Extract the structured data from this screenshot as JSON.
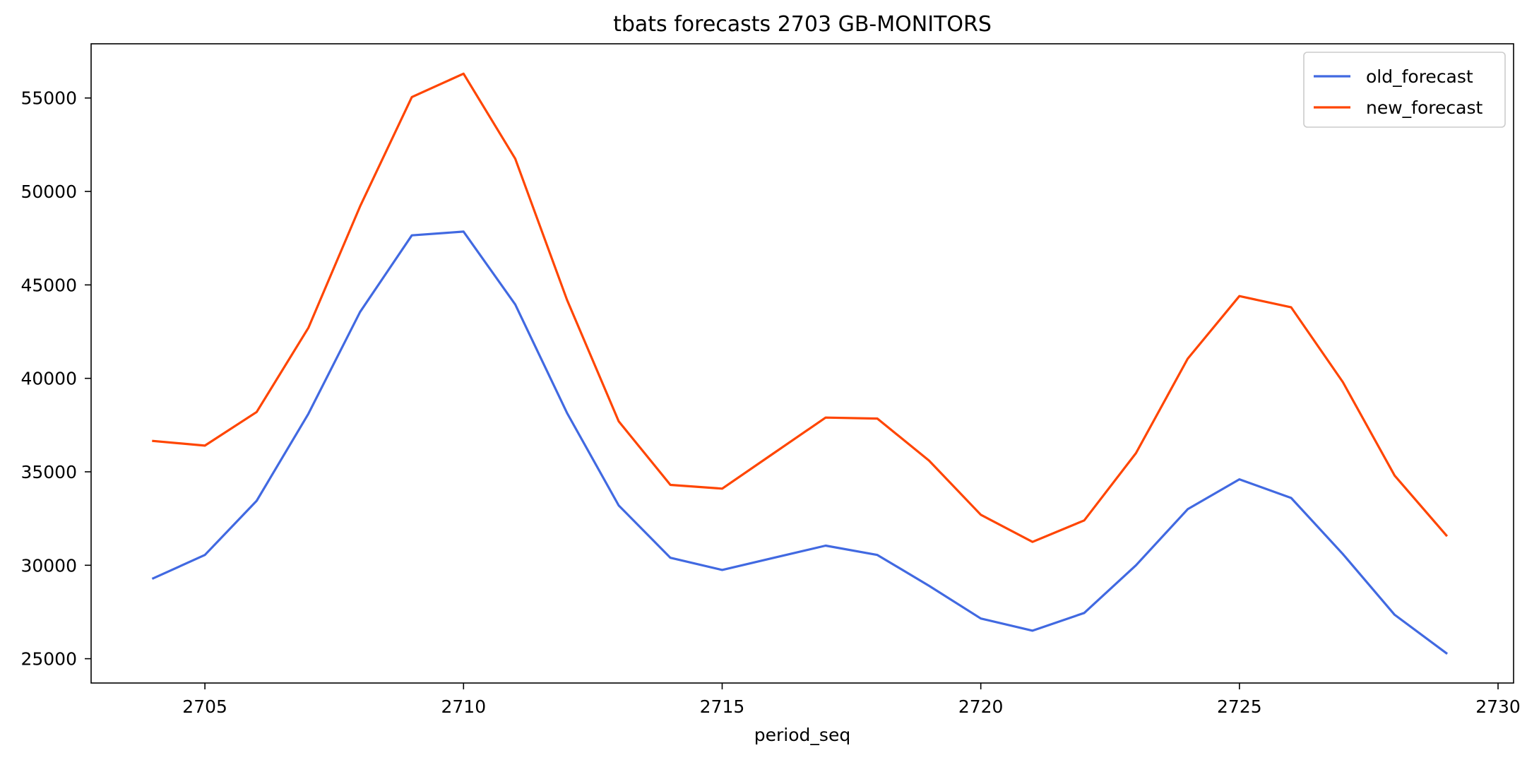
{
  "chart_data": {
    "type": "line",
    "title": "tbats forecasts 2703 GB-MONITORS",
    "xlabel": "period_seq",
    "ylabel": "",
    "xlim": [
      2702.8,
      2730.3
    ],
    "ylim": [
      23700,
      57900
    ],
    "xticks": [
      2705,
      2710,
      2715,
      2720,
      2725,
      2730
    ],
    "yticks": [
      25000,
      30000,
      35000,
      40000,
      45000,
      50000,
      55000
    ],
    "grid": false,
    "legend_position": "top-right",
    "x": [
      2704,
      2705,
      2706,
      2707,
      2708,
      2709,
      2710,
      2711,
      2712,
      2713,
      2714,
      2715,
      2716,
      2717,
      2718,
      2719,
      2720,
      2721,
      2722,
      2723,
      2724,
      2725,
      2726,
      2727,
      2728,
      2729
    ],
    "series": [
      {
        "name": "old_forecast",
        "color": "#4169e1",
        "values": [
          29300,
          30550,
          33450,
          38100,
          43550,
          47650,
          47850,
          43950,
          38150,
          33200,
          30400,
          29750,
          30400,
          31050,
          30550,
          28900,
          27150,
          26500,
          27450,
          30000,
          33000,
          34600,
          33600,
          30600,
          27350,
          25300
        ]
      },
      {
        "name": "new_forecast",
        "color": "#ff4500",
        "values": [
          36650,
          36400,
          38200,
          42700,
          49200,
          55050,
          56300,
          51750,
          44200,
          37700,
          34300,
          34100,
          36000,
          37900,
          37850,
          35600,
          32700,
          31250,
          32400,
          36000,
          41050,
          44400,
          43800,
          39800,
          34800,
          31600
        ]
      }
    ]
  }
}
